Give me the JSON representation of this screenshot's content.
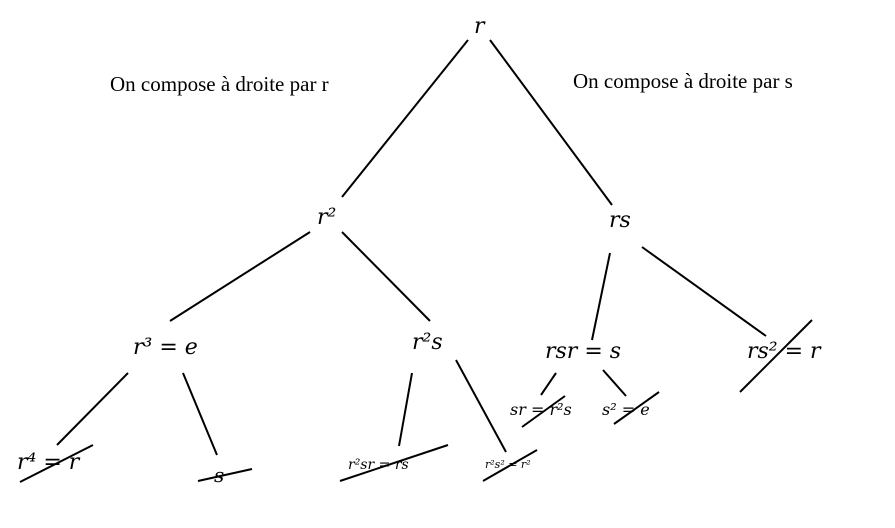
{
  "captions": {
    "left": "On compose à droite par r",
    "right": "On compose à droite par s"
  },
  "nodes": {
    "root": "r",
    "l1_left": "r²",
    "l1_right": "rs",
    "l2_a": "r³ = e",
    "l2_b": "r²s",
    "l2_c": "rsr = s",
    "l2_d": "rs² = r",
    "l3_a": "r⁴ = r",
    "l3_b": "s",
    "l3_c": "r²sr = rs",
    "l3_d": "r²s² = r²",
    "l3_e": "sr = r²s",
    "l3_f": "s² = e"
  },
  "struck_nodes": [
    "l2_d",
    "l3_a",
    "l3_b",
    "l3_c",
    "l3_d",
    "l3_e",
    "l3_f"
  ]
}
